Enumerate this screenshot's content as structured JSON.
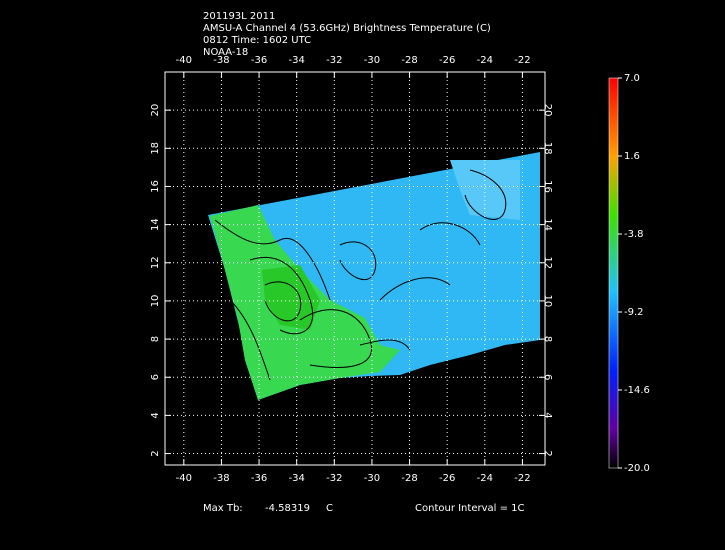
{
  "header": {
    "lines": [
      "201193L 2011",
      "AMSU-A Channel 4 (53.6GHz) Brightness Temperature (C)",
      "0812 Time: 1602 UTC",
      "NOAA-18"
    ]
  },
  "map": {
    "xlim": [
      -41,
      -20.8
    ],
    "ylim": [
      1.4,
      22
    ],
    "xticks": [
      -40,
      -38,
      -36,
      -34,
      -32,
      -30,
      -28,
      -26,
      -24,
      -22
    ],
    "yticks": [
      2,
      4,
      6,
      8,
      10,
      12,
      14,
      16,
      18,
      20
    ]
  },
  "colorbar": {
    "lim": [
      -20,
      7
    ],
    "ticks": [
      {
        "value": 7,
        "label": "7.0"
      },
      {
        "value": 1.6,
        "label": "1.6"
      },
      {
        "value": -3.8,
        "label": "-3.8"
      },
      {
        "value": -9.2,
        "label": "-9.2"
      },
      {
        "value": -14.6,
        "label": "-14.6"
      },
      {
        "value": -20,
        "label": "-20.0"
      }
    ]
  },
  "footer": {
    "max_label": "Max Tb:",
    "max_value": "-4.58319",
    "max_unit": "C",
    "contour": "Contour Interval = 1C"
  }
}
